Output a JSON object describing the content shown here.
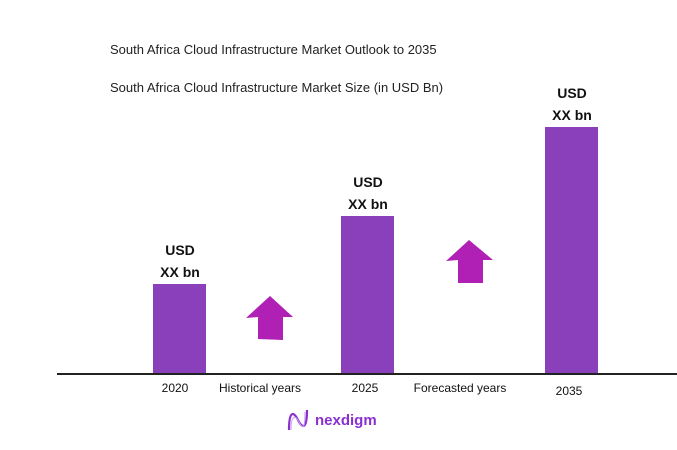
{
  "chart_data": {
    "type": "bar",
    "title": "South Africa Cloud Infrastructure Market Outlook to 2035",
    "subtitle": "South Africa Cloud Infrastructure Market Size (in USD Bn)",
    "categories": [
      "2020",
      "2025",
      "2035"
    ],
    "values": [
      null,
      null,
      null
    ],
    "data_labels": [
      {
        "line1": "USD",
        "line2": "XX bn"
      },
      {
        "line1": "USD",
        "line2": "XX bn"
      },
      {
        "line1": "USD",
        "line2": "XX bn"
      }
    ],
    "period_labels": [
      "Historical years",
      "Forecasted years"
    ],
    "grid": false,
    "colors": {
      "bar": "#8a40bb",
      "arrow": "#b020b5"
    }
  },
  "brand": {
    "name": "nexdigm"
  }
}
